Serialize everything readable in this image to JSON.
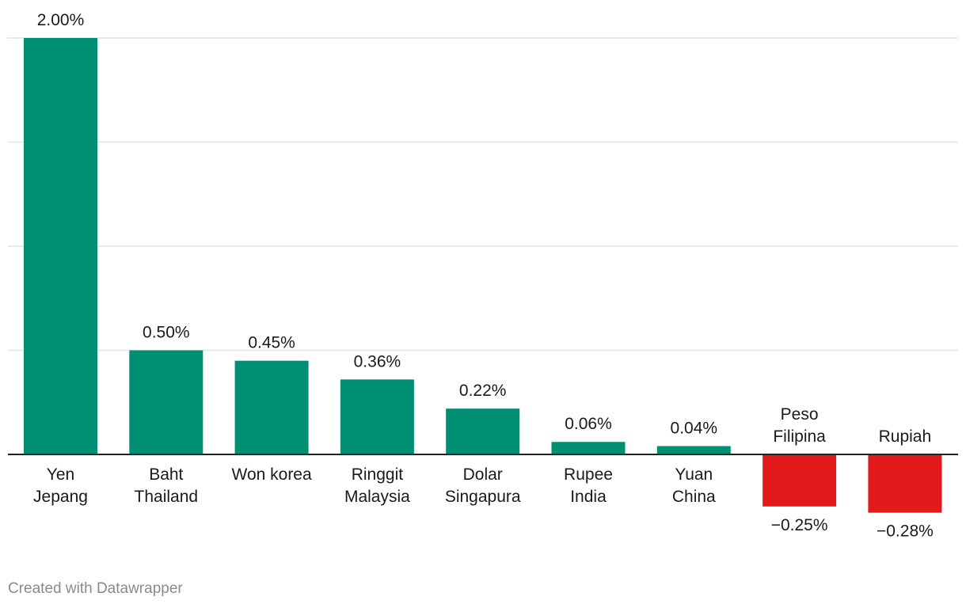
{
  "chart_data": {
    "type": "bar",
    "categories": [
      [
        "Yen",
        "Jepang"
      ],
      [
        "Baht",
        "Thailand"
      ],
      [
        "Won korea"
      ],
      [
        "Ringgit",
        "Malaysia"
      ],
      [
        "Dolar",
        "Singapura"
      ],
      [
        "Rupee",
        "India"
      ],
      [
        "Yuan",
        "China"
      ],
      [
        "Peso",
        "Filipina"
      ],
      [
        "Rupiah"
      ]
    ],
    "values": [
      2.0,
      0.5,
      0.45,
      0.36,
      0.22,
      0.06,
      0.04,
      -0.25,
      -0.28
    ],
    "value_labels": [
      "2.00%",
      "0.50%",
      "0.45%",
      "0.36%",
      "0.22%",
      "0.06%",
      "0.04%",
      "−0.25%",
      "−0.28%"
    ],
    "ylim": [
      -0.28,
      2.0
    ],
    "gridlines": [
      0.5,
      1.0,
      1.5,
      2.0
    ],
    "grid": true,
    "colors": {
      "positive": "#008f73",
      "negative": "#e31a1c",
      "grid": "#e2e2e2",
      "axis": "#222222"
    }
  },
  "footer": {
    "credit": "Created with Datawrapper"
  }
}
